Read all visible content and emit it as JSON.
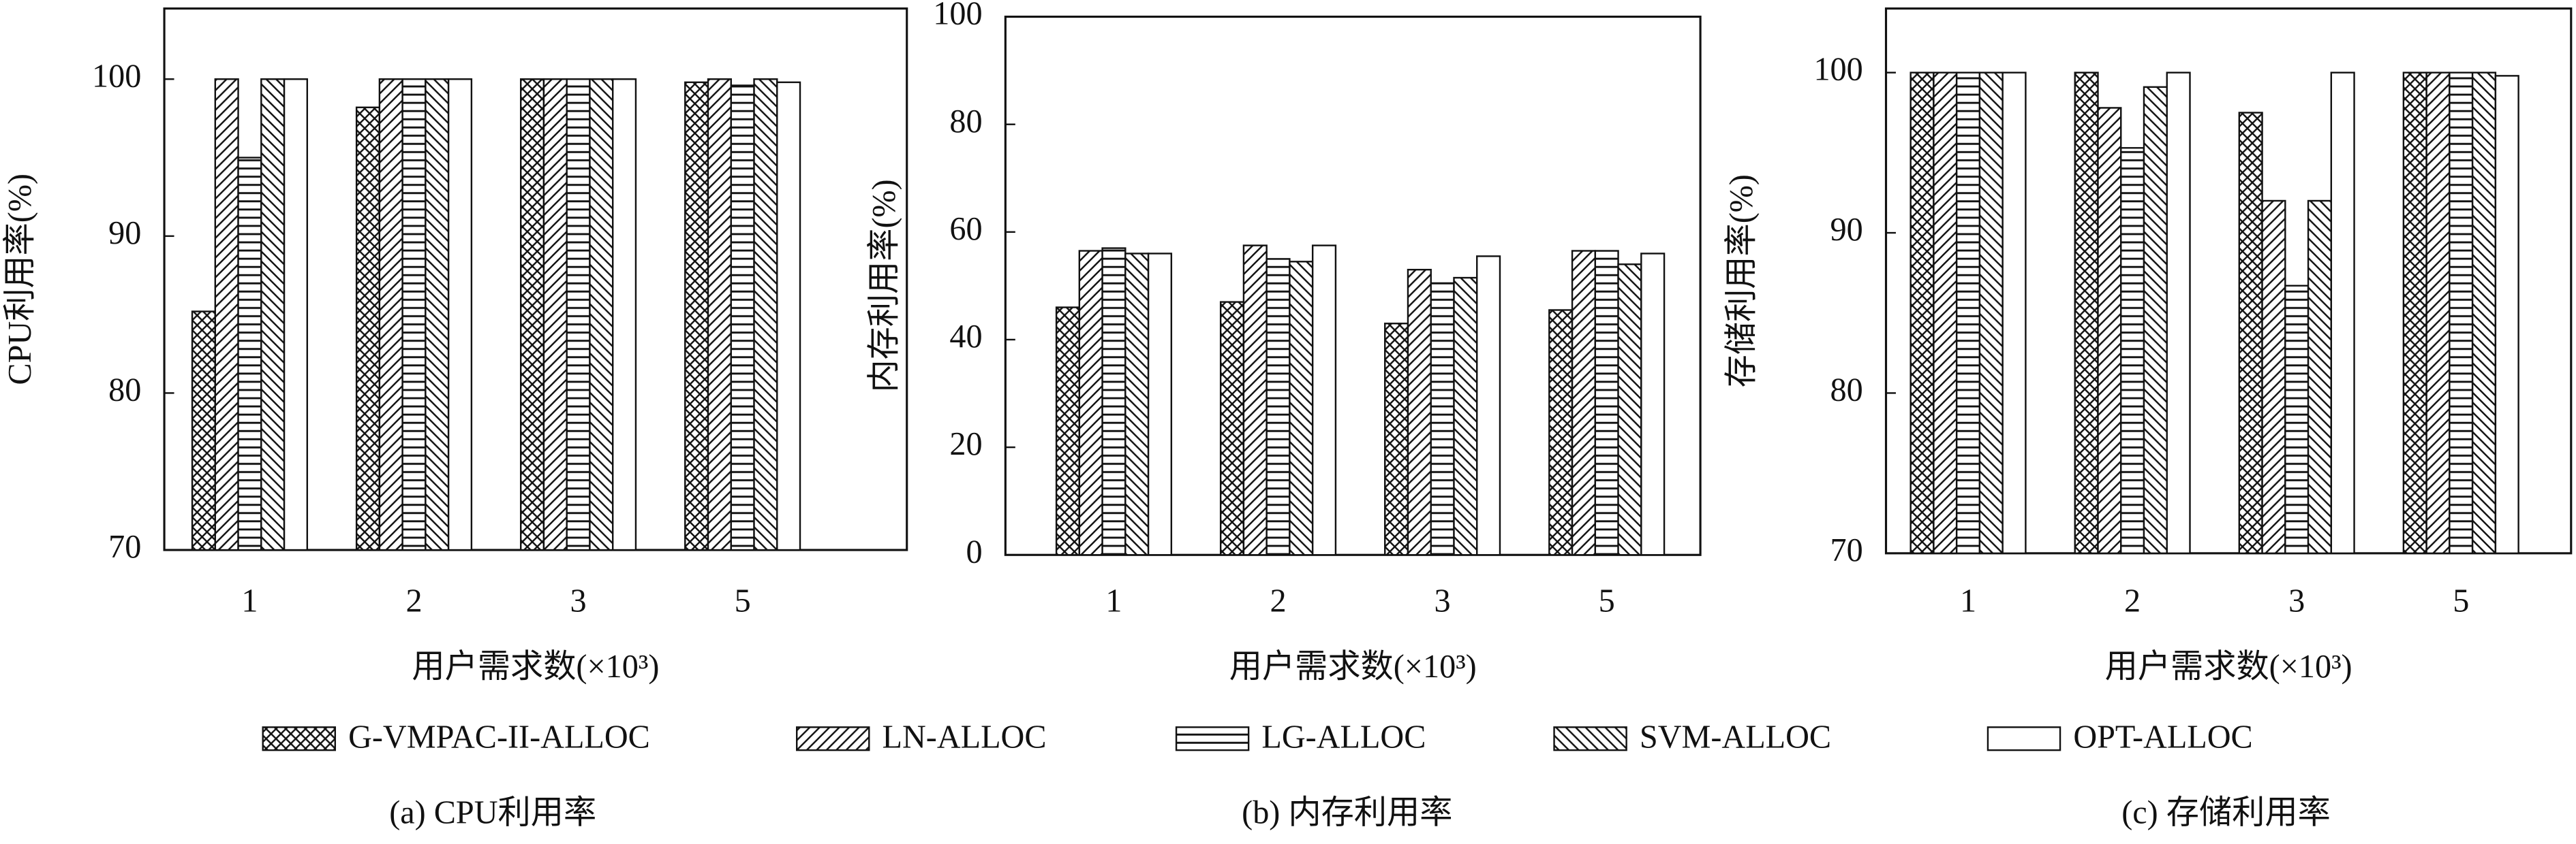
{
  "chart_data": [
    {
      "type": "bar",
      "caption": "(a) CPU利用率",
      "ylabel": "CPU利用率(%)",
      "xlabel": "用户需求数(×10³)",
      "categories": [
        "1",
        "2",
        "3",
        "5"
      ],
      "ylim": [
        70,
        104.5
      ],
      "yticks": [
        70,
        80,
        90,
        100
      ],
      "series": [
        {
          "name": "G-VMPAC-II-ALLOC",
          "pattern": "crosshatch",
          "values": [
            85.2,
            98.2,
            100,
            99.8
          ]
        },
        {
          "name": "LN-ALLOC",
          "pattern": "forward",
          "values": [
            100,
            100,
            100,
            100
          ]
        },
        {
          "name": "LG-ALLOC",
          "pattern": "horizontal",
          "values": [
            95,
            100,
            100,
            99.6
          ]
        },
        {
          "name": "SVM-ALLOC",
          "pattern": "backward",
          "values": [
            100,
            100,
            100,
            100
          ]
        },
        {
          "name": "OPT-ALLOC",
          "pattern": "none",
          "values": [
            100,
            100,
            100,
            99.8
          ]
        }
      ]
    },
    {
      "type": "bar",
      "caption": "(b) 内存利用率",
      "ylabel": "内存利用率(%)",
      "xlabel": "用户需求数(×10³)",
      "categories": [
        "1",
        "2",
        "3",
        "5"
      ],
      "ylim": [
        0,
        100
      ],
      "yticks": [
        0,
        20,
        40,
        60,
        80,
        100
      ],
      "series": [
        {
          "values": [
            46,
            47,
            43,
            45.5
          ]
        },
        {
          "values": [
            56.5,
            57.5,
            53,
            56.5
          ]
        },
        {
          "values": [
            57,
            55,
            50.5,
            56.5
          ]
        },
        {
          "values": [
            56,
            54.5,
            51.5,
            54
          ]
        },
        {
          "values": [
            56,
            57.5,
            55.5,
            56
          ]
        }
      ]
    },
    {
      "type": "bar",
      "caption": "(c) 存储利用率",
      "ylabel": "存储利用率(%)",
      "xlabel": "用户需求数(×10³)",
      "categories": [
        "1",
        "2",
        "3",
        "5"
      ],
      "ylim": [
        70,
        104
      ],
      "yticks": [
        70,
        80,
        90,
        100
      ],
      "series": [
        {
          "values": [
            100,
            100,
            97.5,
            100
          ]
        },
        {
          "values": [
            100,
            97.8,
            92,
            100
          ]
        },
        {
          "values": [
            100,
            95.3,
            86.7,
            100
          ]
        },
        {
          "values": [
            100,
            99.1,
            92,
            100
          ]
        },
        {
          "values": [
            100,
            100,
            100,
            99.8
          ]
        }
      ]
    }
  ]
}
